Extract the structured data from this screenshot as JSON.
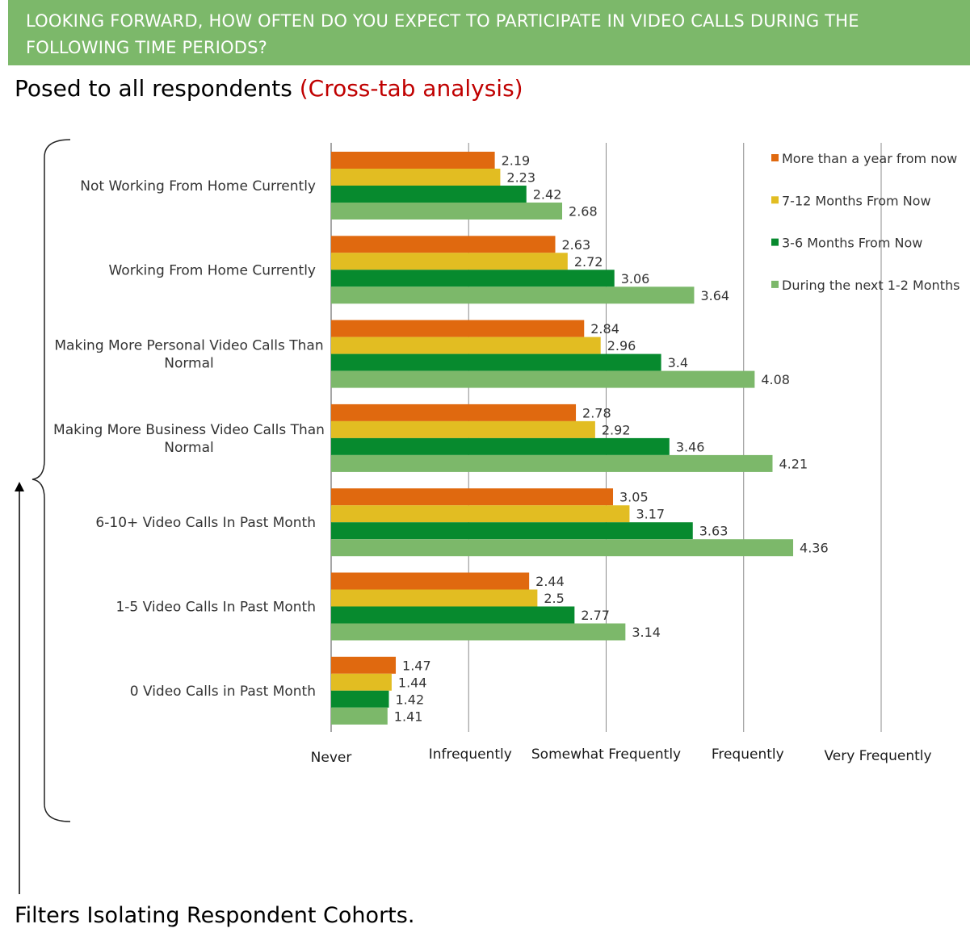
{
  "header": {
    "question": "LOOKING FORWARD, HOW OFTEN DO YOU EXPECT TO PARTICIPATE IN VIDEO CALLS DURING THE FOLLOWING TIME PERIODS?"
  },
  "subtitle": {
    "text": "Posed to all respondents",
    "note": "(Cross-tab analysis)"
  },
  "footnote": "Filters Isolating Respondent Cohorts.",
  "colors": {
    "header_bg": "#7cb86a",
    "note": "#c00000",
    "more_than_year": "#e0690f",
    "months_7_12": "#e2bd22",
    "months_3_6": "#078a2e",
    "months_1_2": "#7cb86a",
    "grid": "#7f7f7f"
  },
  "chart_data": {
    "type": "bar",
    "orientation": "horizontal",
    "categories": [
      "Not Working From Home Currently",
      "Working From Home Currently",
      "Making More Personal Video Calls Than Normal",
      "Making More Business Video Calls Than Normal",
      "6-10+ Video Calls In Past Month",
      "1-5 Video Calls In Past Month",
      "0 Video Calls in Past Month"
    ],
    "series": [
      {
        "name": "More than a year from now",
        "color": "#e0690f",
        "values": [
          2.19,
          2.63,
          2.84,
          2.78,
          3.05,
          2.44,
          1.47
        ]
      },
      {
        "name": "7-12 Months From Now",
        "color": "#e2bd22",
        "values": [
          2.23,
          2.72,
          2.96,
          2.92,
          3.17,
          2.5,
          1.44
        ]
      },
      {
        "name": "3-6 Months From Now",
        "color": "#078a2e",
        "values": [
          2.42,
          3.06,
          3.4,
          3.46,
          3.63,
          2.77,
          1.42
        ]
      },
      {
        "name": "During the next 1-2 Months",
        "color": "#7cb86a",
        "values": [
          2.68,
          3.64,
          4.08,
          4.21,
          4.36,
          3.14,
          1.41
        ]
      }
    ],
    "x_ticks": [
      {
        "value": 1,
        "label": "Never"
      },
      {
        "value": 2,
        "label": "Infrequently"
      },
      {
        "value": 3,
        "label": "Somewhat Frequently"
      },
      {
        "value": 4,
        "label": "Frequently"
      },
      {
        "value": 5,
        "label": "Very Frequently"
      }
    ],
    "xlim": [
      1,
      5
    ],
    "grid": true,
    "legend_position": "top-right",
    "data_labels": true
  }
}
